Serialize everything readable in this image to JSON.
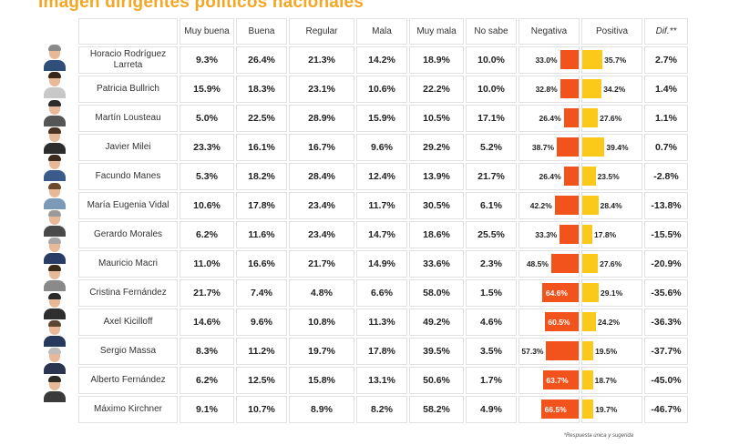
{
  "title": "Imagen dirigentes políticos nacionales",
  "columns": {
    "muy_buena": "Muy buena",
    "buena": "Buena",
    "regular": "Regular",
    "mala": "Mala",
    "muy_mala": "Muy mala",
    "no_sabe": "No sabe",
    "negativa": "Negativa",
    "positiva": "Positiva",
    "dif": "Dif.**"
  },
  "colors": {
    "title": "#f5a623",
    "negative": "#f2521c",
    "positive": "#fbc91a"
  },
  "chart_data": {
    "type": "table",
    "title": "Imagen dirigentes políticos nacionales",
    "series": [
      {
        "name": "Negativa",
        "color": "#f2521c"
      },
      {
        "name": "Positiva",
        "color": "#fbc91a"
      }
    ],
    "rows": [
      {
        "name": "Horacio Rodríguez Larreta",
        "muy_buena": "9.3%",
        "buena": "26.4%",
        "regular": "21.3%",
        "mala": "14.2%",
        "muy_mala": "18.9%",
        "no_sabe": "10.0%",
        "negativa": 33.0,
        "negativa_label": "33.0%",
        "positiva": 35.7,
        "positiva_label": "35.7%",
        "dif": "2.7%"
      },
      {
        "name": "Patricia Bullrich",
        "muy_buena": "15.9%",
        "buena": "18.3%",
        "regular": "23.1%",
        "mala": "10.6%",
        "muy_mala": "22.2%",
        "no_sabe": "10.0%",
        "negativa": 32.8,
        "negativa_label": "32.8%",
        "positiva": 34.2,
        "positiva_label": "34.2%",
        "dif": "1.4%"
      },
      {
        "name": "Martín Lousteau",
        "muy_buena": "5.0%",
        "buena": "22.5%",
        "regular": "28.9%",
        "mala": "15.9%",
        "muy_mala": "10.5%",
        "no_sabe": "17.1%",
        "negativa": 26.4,
        "negativa_label": "26.4%",
        "positiva": 27.6,
        "positiva_label": "27.6%",
        "dif": "1.1%"
      },
      {
        "name": "Javier Milei",
        "muy_buena": "23.3%",
        "buena": "16.1%",
        "regular": "16.7%",
        "mala": "9.6%",
        "muy_mala": "29.2%",
        "no_sabe": "5.2%",
        "negativa": 38.7,
        "negativa_label": "38.7%",
        "positiva": 39.4,
        "positiva_label": "39.4%",
        "dif": "0.7%"
      },
      {
        "name": "Facundo Manes",
        "muy_buena": "5.3%",
        "buena": "18.2%",
        "regular": "28.4%",
        "mala": "12.4%",
        "muy_mala": "13.9%",
        "no_sabe": "21.7%",
        "negativa": 26.4,
        "negativa_label": "26.4%",
        "positiva": 23.5,
        "positiva_label": "23.5%",
        "dif": "-2.8%"
      },
      {
        "name": "María Eugenia Vidal",
        "muy_buena": "10.6%",
        "buena": "17.8%",
        "regular": "23.4%",
        "mala": "11.7%",
        "muy_mala": "30.5%",
        "no_sabe": "6.1%",
        "negativa": 42.2,
        "negativa_label": "42.2%",
        "positiva": 28.4,
        "positiva_label": "28.4%",
        "dif": "-13.8%"
      },
      {
        "name": "Gerardo Morales",
        "muy_buena": "6.2%",
        "buena": "11.6%",
        "regular": "23.4%",
        "mala": "14.7%",
        "muy_mala": "18.6%",
        "no_sabe": "25.5%",
        "negativa": 33.3,
        "negativa_label": "33.3%",
        "positiva": 17.8,
        "positiva_label": "17.8%",
        "dif": "-15.5%"
      },
      {
        "name": "Mauricio Macri",
        "muy_buena": "11.0%",
        "buena": "16.6%",
        "regular": "21.7%",
        "mala": "14.9%",
        "muy_mala": "33.6%",
        "no_sabe": "2.3%",
        "negativa": 48.5,
        "negativa_label": "48.5%",
        "positiva": 27.6,
        "positiva_label": "27.6%",
        "dif": "-20.9%"
      },
      {
        "name": "Cristina Fernández",
        "muy_buena": "21.7%",
        "buena": "7.4%",
        "regular": "4.8%",
        "mala": "6.6%",
        "muy_mala": "58.0%",
        "no_sabe": "1.5%",
        "negativa": 64.6,
        "negativa_label": "64.6%",
        "positiva": 29.1,
        "positiva_label": "29.1%",
        "dif": "-35.6%"
      },
      {
        "name": "Axel Kicilloff",
        "muy_buena": "14.6%",
        "buena": "9.6%",
        "regular": "10.8%",
        "mala": "11.3%",
        "muy_mala": "49.2%",
        "no_sabe": "4.6%",
        "negativa": 60.5,
        "negativa_label": "60.5%",
        "positiva": 24.2,
        "positiva_label": "24.2%",
        "dif": "-36.3%"
      },
      {
        "name": "Sergio Massa",
        "muy_buena": "8.3%",
        "buena": "11.2%",
        "regular": "19.7%",
        "mala": "17.8%",
        "muy_mala": "39.5%",
        "no_sabe": "3.5%",
        "negativa": 57.3,
        "negativa_label": "57.3%",
        "positiva": 19.5,
        "positiva_label": "19.5%",
        "dif": "-37.7%"
      },
      {
        "name": "Alberto Fernández",
        "muy_buena": "6.2%",
        "buena": "12.5%",
        "regular": "15.8%",
        "mala": "13.1%",
        "muy_mala": "50.6%",
        "no_sabe": "1.7%",
        "negativa": 63.7,
        "negativa_label": "63.7%",
        "positiva": 18.7,
        "positiva_label": "18.7%",
        "dif": "-45.0%"
      },
      {
        "name": "Máximo Kirchner",
        "muy_buena": "9.1%",
        "buena": "10.7%",
        "regular": "8.9%",
        "mala": "8.2%",
        "muy_mala": "58.2%",
        "no_sabe": "4.9%",
        "negativa": 66.5,
        "negativa_label": "66.5%",
        "positiva": 19.7,
        "positiva_label": "19.7%",
        "dif": "-46.7%"
      }
    ]
  },
  "footnotes": {
    "note1": "*Respuesta única y sugerida"
  }
}
